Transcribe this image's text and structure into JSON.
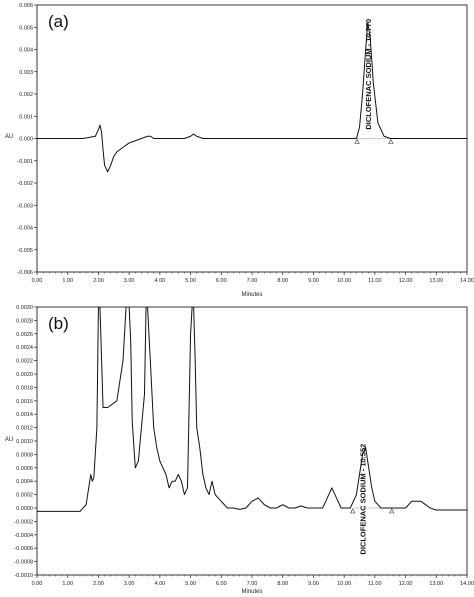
{
  "chart_data": [
    {
      "type": "line",
      "panel_label": "(a)",
      "xlabel": "Minutes",
      "ylabel": "AU",
      "xlim": [
        0,
        14
      ],
      "ylim": [
        -0.006,
        0.006
      ],
      "x_ticks": [
        "0.00",
        "1.00",
        "2.00",
        "3.00",
        "4.00",
        "5.00",
        "6.00",
        "7.00",
        "8.00",
        "9.00",
        "10.00",
        "11.00",
        "12.00",
        "13.00",
        "14.00"
      ],
      "y_ticks": [
        "-0.006",
        "-0.005",
        "-0.004",
        "-0.003",
        "-0.002",
        "-0.001",
        "0.000",
        "0.001",
        "0.002",
        "0.003",
        "0.004",
        "0.005",
        "0.006"
      ],
      "series": [
        {
          "x": [
            0.0,
            1.5,
            1.9,
            2.0,
            2.05,
            2.1,
            2.15,
            2.2,
            2.3,
            2.4,
            2.5,
            2.6,
            2.8,
            3.0,
            3.2,
            3.4,
            3.6,
            3.7,
            3.8,
            4.0,
            4.5,
            4.8,
            5.0,
            5.1,
            5.2,
            5.4,
            6.0,
            7.0,
            8.0,
            9.0,
            10.0,
            10.4,
            10.5,
            10.6,
            10.7,
            10.77,
            10.85,
            10.95,
            11.1,
            11.3,
            11.5,
            12.0,
            13.0,
            14.0
          ],
          "y": [
            0.0,
            0.0,
            0.0001,
            0.0004,
            0.0006,
            0.0003,
            -0.0005,
            -0.0012,
            -0.0015,
            -0.0012,
            -0.0008,
            -0.0006,
            -0.0004,
            -0.0002,
            -0.0001,
            0.0,
            0.0001,
            0.0001,
            0.0,
            0.0,
            0.0,
            0.0,
            0.0001,
            0.0002,
            0.0001,
            0.0,
            0.0,
            0.0,
            0.0,
            0.0,
            0.0,
            0.0,
            0.0005,
            0.002,
            0.004,
            0.0052,
            0.0045,
            0.0025,
            0.0007,
            0.0001,
            0.0,
            0.0,
            0.0,
            0.0
          ]
        }
      ],
      "annotations": [
        {
          "text": "DICLOFENAC SODIUM - 10.770",
          "x": 10.77,
          "y": 0.0052
        }
      ],
      "baseline_markers": [
        10.42,
        11.52
      ]
    },
    {
      "type": "line",
      "panel_label": "(b)",
      "xlabel": "Minutes",
      "ylabel": "AU",
      "xlim": [
        0,
        14
      ],
      "ylim": [
        -0.001,
        0.003
      ],
      "x_ticks": [
        "0.00",
        "1.00",
        "2.00",
        "3.00",
        "4.00",
        "5.00",
        "6.00",
        "7.00",
        "8.00",
        "9.00",
        "10.00",
        "11.00",
        "12.00",
        "13.00",
        "14.00"
      ],
      "y_ticks": [
        "-0.0010",
        "-0.0008",
        "-0.0006",
        "-0.0004",
        "-0.0002",
        "0.0000",
        "0.0002",
        "0.0004",
        "0.0006",
        "0.0008",
        "0.0010",
        "0.0012",
        "0.0014",
        "0.0016",
        "0.0018",
        "0.0020",
        "0.0022",
        "0.0024",
        "0.0026",
        "0.0028",
        "0.0030"
      ],
      "series": [
        {
          "x": [
            0.0,
            1.4,
            1.6,
            1.7,
            1.75,
            1.8,
            1.85,
            1.95,
            2.0,
            2.05,
            2.15,
            2.3,
            2.6,
            2.8,
            2.9,
            3.0,
            3.05,
            3.1,
            3.2,
            3.3,
            3.4,
            3.5,
            3.55,
            3.6,
            3.7,
            3.8,
            3.9,
            4.0,
            4.1,
            4.2,
            4.3,
            4.4,
            4.5,
            4.6,
            4.7,
            4.8,
            4.9,
            5.0,
            5.05,
            5.1,
            5.15,
            5.2,
            5.3,
            5.4,
            5.5,
            5.6,
            5.7,
            5.8,
            6.0,
            6.2,
            6.4,
            6.6,
            6.8,
            7.0,
            7.2,
            7.4,
            7.6,
            7.8,
            8.0,
            8.2,
            8.4,
            8.6,
            8.8,
            9.0,
            9.3,
            9.5,
            9.6,
            9.7,
            9.8,
            9.9,
            10.0,
            10.2,
            10.4,
            10.5,
            10.6,
            10.7,
            10.8,
            10.9,
            11.0,
            11.2,
            11.5,
            12.0,
            12.2,
            12.5,
            12.8,
            13.0,
            13.5,
            14.0
          ],
          "y": [
            -5e-05,
            -5e-05,
            5e-05,
            0.00035,
            0.0005,
            0.0004,
            0.00045,
            0.0012,
            0.003,
            0.003,
            0.0015,
            0.0015,
            0.0016,
            0.0022,
            0.003,
            0.003,
            0.0025,
            0.0013,
            0.0006,
            0.0007,
            0.0012,
            0.0017,
            0.003,
            0.003,
            0.0021,
            0.0012,
            0.0009,
            0.0007,
            0.0006,
            0.0005,
            0.0003,
            0.0004,
            0.0004,
            0.0005,
            0.0004,
            0.0002,
            0.0003,
            0.0026,
            0.003,
            0.003,
            0.0022,
            0.0012,
            0.0009,
            0.0005,
            0.0003,
            0.0002,
            0.0004,
            0.0002,
            0.0001,
            0.0,
            0.0,
            -2e-05,
            0.0,
            0.0001,
            0.00015,
            5e-05,
            0.0,
            0.0,
            5e-05,
            0.0,
            0.0,
            3e-05,
            0.0,
            0.0,
            0.0,
            0.0002,
            0.0003,
            0.0002,
            0.0001,
            0.0,
            0.0,
            0.0,
            0.0002,
            0.0005,
            0.0008,
            0.0009,
            0.0006,
            0.0003,
            0.0001,
            0.0,
            0.0,
            0.0,
            0.0001,
            0.0001,
            0.0,
            -3e-05,
            -3e-05,
            -3e-05
          ]
        }
      ],
      "annotations": [
        {
          "text": "DICLOFENAC SODIUM - 10.552",
          "x": 10.6,
          "y": 0.0009
        }
      ],
      "baseline_markers": [
        10.28,
        11.55
      ]
    }
  ]
}
